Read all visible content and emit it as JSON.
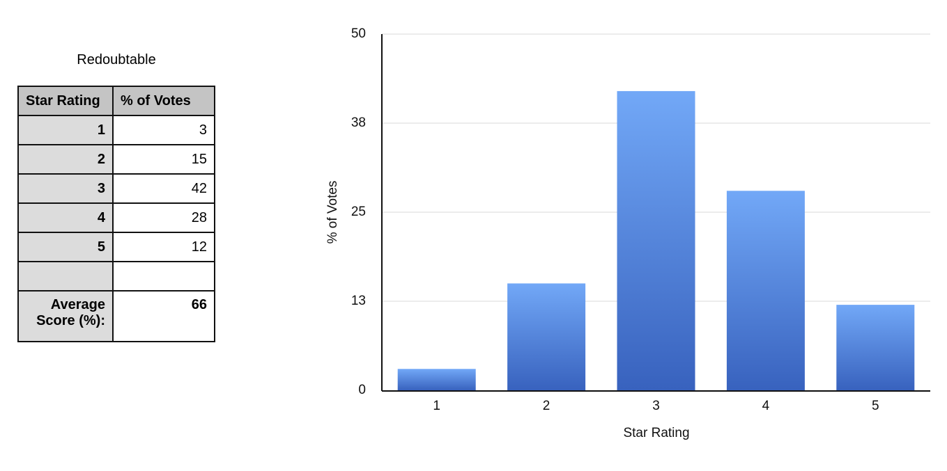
{
  "table": {
    "title": "Redoubtable",
    "header": [
      "Star Rating",
      "% of Votes"
    ],
    "rows": [
      [
        1,
        3
      ],
      [
        2,
        15
      ],
      [
        3,
        42
      ],
      [
        4,
        28
      ],
      [
        5,
        12
      ]
    ],
    "average": [
      "Average Score (%):",
      66
    ]
  },
  "chart_data": {
    "type": "bar",
    "categories": [
      "1",
      "2",
      "3",
      "4",
      "5"
    ],
    "values": [
      3,
      15,
      42,
      28,
      12
    ],
    "x_label": "Star Rating",
    "y_label": "% of Votes",
    "ylim": [
      0,
      50
    ],
    "yticks": [
      0,
      {
        "value": 12.5,
        "label": "13"
      },
      25,
      {
        "value": 37.5,
        "label": "38"
      },
      50
    ],
    "grid": true,
    "color_top": "#72a8f7",
    "color_bottom": "#3862be"
  }
}
